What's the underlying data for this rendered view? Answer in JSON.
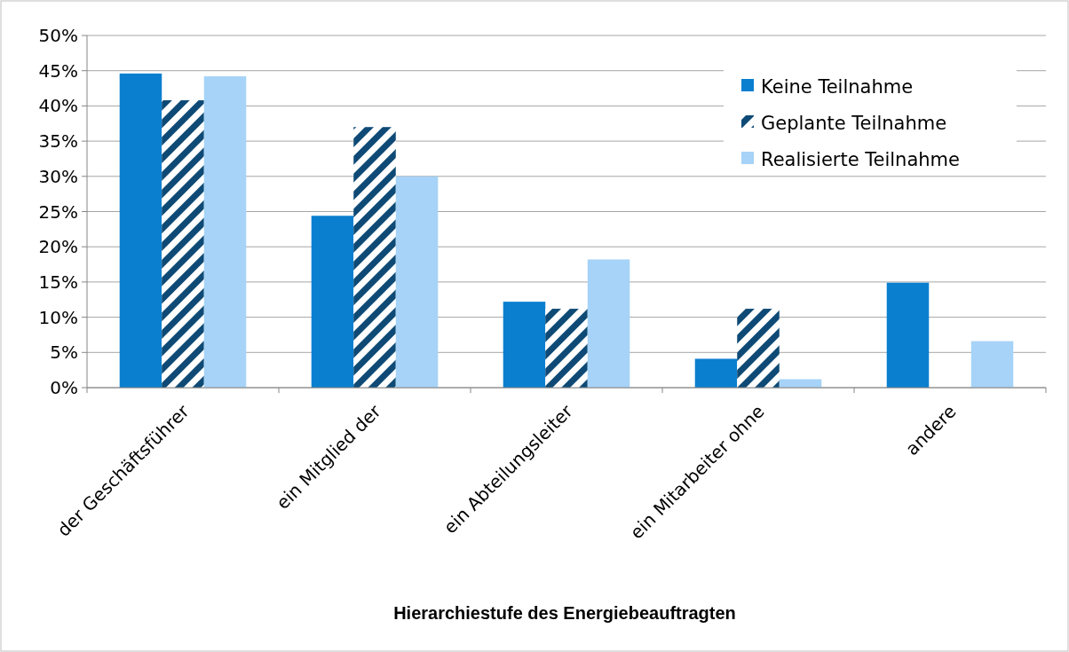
{
  "chart_data": {
    "type": "bar",
    "xlabel": "Hierarchiestufe des Energiebeauftragten",
    "categories": [
      "der Geschäftsführer",
      "ein Mitglied der",
      "ein Abteilungsleiter",
      "ein Mitarbeiter ohne",
      "andere"
    ],
    "series": [
      {
        "name": "Keine Teilnahme",
        "color": "#0a7fd0",
        "values": [
          44.6,
          24.4,
          12.2,
          4.1,
          14.9
        ]
      },
      {
        "name": "Geplante Teilnahme",
        "color": "#0e4a75",
        "values": [
          40.8,
          37.0,
          11.2,
          11.2,
          0
        ]
      },
      {
        "name": "Realisierte Teilnahme",
        "color": "#a6d3f7",
        "values": [
          44.2,
          30.0,
          18.2,
          1.2,
          6.6
        ]
      }
    ],
    "ylim": [
      0,
      50
    ],
    "yticks": [
      {
        "value": 0,
        "label": "0%"
      },
      {
        "value": 5,
        "label": "5%"
      },
      {
        "value": 10,
        "label": "10%"
      },
      {
        "value": 15,
        "label": "15%"
      },
      {
        "value": 20,
        "label": "20%"
      },
      {
        "value": 25,
        "label": "25%"
      },
      {
        "value": 30,
        "label": "30%"
      },
      {
        "value": 35,
        "label": "35%"
      },
      {
        "value": 40,
        "label": "40%"
      },
      {
        "value": 45,
        "label": "45%"
      },
      {
        "value": 50,
        "label": "50%"
      }
    ],
    "grid": "y",
    "legend": "top right"
  }
}
